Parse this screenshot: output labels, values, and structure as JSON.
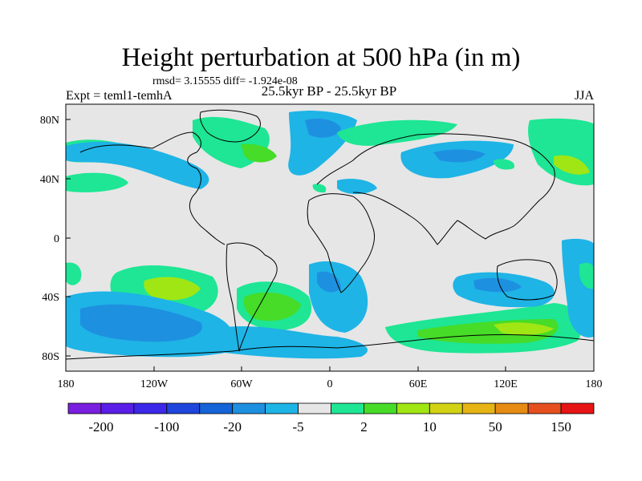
{
  "title": "Height perturbation at 500 hPa (in m)",
  "stats": "rmsd= 3.15555 diff= -1.924e-08",
  "experiment": "Expt = teml1-temhA",
  "period": "25.5kyr BP - 25.5kyr BP",
  "season": "JJA",
  "lat_ticks": [
    "80N",
    "40N",
    "0",
    "40S",
    "80S"
  ],
  "lon_ticks": [
    "180",
    "120W",
    "60W",
    "0",
    "60E",
    "120E",
    "180"
  ],
  "colorbar": {
    "colors": [
      "#7a1ee0",
      "#5a1ee6",
      "#3c28e8",
      "#1e46dc",
      "#1464d8",
      "#1e90e0",
      "#1eb4e6",
      "#e6e6e6",
      "#1ee694",
      "#46dc28",
      "#a0e614",
      "#d2d214",
      "#e6b414",
      "#e68c14",
      "#e6501e",
      "#e61414"
    ],
    "labels": [
      "-200",
      "-100",
      "-20",
      "-5",
      "2",
      "10",
      "50",
      "150"
    ]
  },
  "chart_data": {
    "type": "heatmap",
    "title": "Height perturbation at 500 hPa (in m)",
    "projection": "cylindrical equidistant",
    "lon_range": [
      -180,
      180
    ],
    "lat_range": [
      -90,
      90
    ],
    "contour_levels": [
      -200,
      -100,
      -20,
      -5,
      2,
      10,
      50,
      150
    ],
    "anomaly_regions": [
      {
        "lon": -150,
        "lat": -62,
        "value": -15,
        "lon_w": 32,
        "lat_h": 12
      },
      {
        "lon": -120,
        "lat": -35,
        "value": 10,
        "lon_w": 20,
        "lat_h": 10
      },
      {
        "lon": -33,
        "lat": -47,
        "value": 8,
        "lon_w": 18,
        "lat_h": 13
      },
      {
        "lon": 5,
        "lat": -35,
        "value": -5,
        "lon_w": 12,
        "lat_h": 10
      },
      {
        "lon": 100,
        "lat": -68,
        "value": 10,
        "lon_w": 70,
        "lat_h": 8
      },
      {
        "lon": 80,
        "lat": -33,
        "value": -5,
        "lon_w": 25,
        "lat_h": 8
      },
      {
        "lon": -95,
        "lat": 55,
        "value": -5,
        "lon_w": 40,
        "lat_h": 15
      },
      {
        "lon": -45,
        "lat": 55,
        "value": 5,
        "lon_w": 18,
        "lat_h": 10
      },
      {
        "lon": -15,
        "lat": 70,
        "value": -5,
        "lon_w": 15,
        "lat_h": 10
      },
      {
        "lon": 65,
        "lat": 50,
        "value": -5,
        "lon_w": 35,
        "lat_h": 15
      },
      {
        "lon": 150,
        "lat": 60,
        "value": 5,
        "lon_w": 25,
        "lat_h": 15
      },
      {
        "lon": -160,
        "lat": 30,
        "value": 3,
        "lon_w": 15,
        "lat_h": 8
      }
    ]
  }
}
